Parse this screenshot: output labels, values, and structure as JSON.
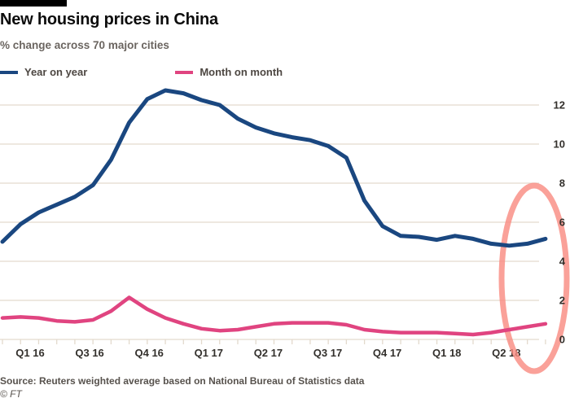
{
  "header": {
    "title": "New housing prices in China",
    "subtitle": "% change across 70 major cities"
  },
  "legend": [
    {
      "label": "Year on year",
      "color": "#1a4780"
    },
    {
      "label": "Month on month",
      "color": "#e04480"
    }
  ],
  "chart_data": {
    "type": "line",
    "title": "New housing prices in China",
    "subtitle": "% change across 70 major cities",
    "x_unit": "monthly points, quarterly tick labels",
    "x_tick_labels": [
      "Q1 16",
      "Q3 16",
      "Q4 16",
      "Q1 17",
      "Q2 17",
      "Q3 17",
      "Q4 17",
      "Q1 18",
      "Q2 18"
    ],
    "ylabel": "% change",
    "ylim": [
      0,
      13
    ],
    "y_ticks": [
      0,
      2,
      4,
      6,
      8,
      10,
      12
    ],
    "grid": "horizontal",
    "legend_position": "top-left",
    "series": [
      {
        "name": "Year on year",
        "color": "#1a4780",
        "values": [
          5.0,
          5.9,
          6.5,
          6.9,
          7.3,
          7.9,
          9.2,
          11.1,
          12.3,
          12.75,
          12.6,
          12.25,
          12.0,
          11.3,
          10.85,
          10.55,
          10.35,
          10.2,
          9.9,
          9.3,
          7.1,
          5.8,
          5.3,
          5.25,
          5.1,
          5.3,
          5.15,
          4.9,
          4.8,
          4.9,
          5.15
        ]
      },
      {
        "name": "Month on month",
        "color": "#e04480",
        "values": [
          1.1,
          1.15,
          1.1,
          0.95,
          0.9,
          1.0,
          1.45,
          2.15,
          1.55,
          1.1,
          0.8,
          0.55,
          0.45,
          0.5,
          0.65,
          0.8,
          0.85,
          0.85,
          0.85,
          0.75,
          0.5,
          0.4,
          0.35,
          0.35,
          0.35,
          0.3,
          0.25,
          0.35,
          0.5,
          0.65,
          0.8
        ]
      }
    ],
    "annotation": {
      "type": "ellipse-highlight",
      "color": "#f98a80",
      "covers": "most recent months (around Q2 18)"
    }
  },
  "footer": {
    "source": "Source: Reuters weighted average based on National Bureau of Statistics data",
    "credit": "© FT"
  },
  "colors": {
    "background": "#ffffff",
    "top_bar": "#000000",
    "gridline": "#e3dacd",
    "axis_text": "#33302c",
    "yoy_line": "#1a4780",
    "mom_line": "#e04480",
    "highlight_ellipse": "#f98a80"
  }
}
